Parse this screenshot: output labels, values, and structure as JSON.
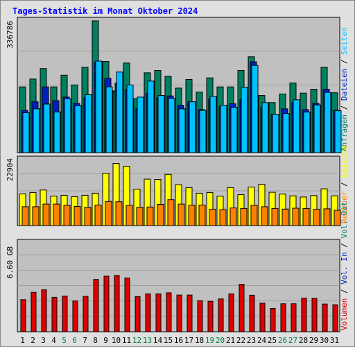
{
  "chart_data": {
    "type": "bar",
    "title": "Tages-Statistik im Monat Oktober 2024",
    "days": [
      "1",
      "2",
      "3",
      "4",
      "5",
      "6",
      "7",
      "8",
      "9",
      "10",
      "11",
      "12",
      "13",
      "14",
      "15",
      "16",
      "17",
      "18",
      "19",
      "20",
      "21",
      "22",
      "23",
      "24",
      "25",
      "26",
      "27",
      "28",
      "29",
      "30",
      "31"
    ],
    "weekend_days": [
      "5",
      "6",
      "12",
      "13",
      "19",
      "20",
      "26",
      "27"
    ],
    "colors": {
      "title": "#0000ff",
      "weekday_tick": "#000000",
      "weekend_tick": "#008040",
      "plot_bg": "#c0c0c0",
      "grid": "#a0a0a0",
      "anfragen": "#008060",
      "dateien": "#0020c0",
      "seiten": "#00c0ff",
      "besuche": "#ffff00",
      "rechner": "#ff8000",
      "volumen": "#e00000"
    },
    "panels": [
      {
        "name": "requests",
        "max_label": "336786",
        "ymax": 336786,
        "series": [
          {
            "key": "anfragen",
            "label": "Anfragen",
            "values": [
              168000,
              188000,
              215000,
              168000,
              198000,
              173000,
              218000,
              336786,
              233000,
              158000,
              229000,
              138000,
              204000,
              210000,
              195000,
              165000,
              187000,
              155000,
              191000,
              168000,
              168000,
              210000,
              245000,
              146000,
              128000,
              150000,
              178000,
              152000,
              162000,
              218000,
              153000
            ]
          },
          {
            "key": "dateien",
            "label": "Dateien",
            "values": [
              108000,
              130000,
              168000,
              133000,
              142000,
              126000,
              140000,
              230000,
              190000,
              178000,
              162000,
              112000,
              152000,
              140000,
              145000,
              121000,
              130000,
              110000,
              138000,
              118000,
              125000,
              135000,
              232000,
              115000,
              98000,
              112000,
              128000,
              110000,
              126000,
              162000,
              108000
            ]
          },
          {
            "key": "seiten",
            "label": "Seiten",
            "values": [
              102000,
              112000,
              124000,
              104000,
              138000,
              120000,
              148000,
              234000,
              168000,
              206000,
              173000,
              142000,
              183000,
              146000,
              139000,
              112000,
              130000,
              108000,
              144000,
              121000,
              116000,
              167000,
              223000,
              128000,
              98000,
              100000,
              135000,
              104000,
              122000,
              154000,
              107000
            ]
          }
        ]
      },
      {
        "name": "visits",
        "max_label": "22904",
        "ymax": 22904,
        "series": [
          {
            "key": "besuche",
            "label": "Besuche",
            "values": [
              10800,
              11200,
              12100,
              10000,
              10300,
              9800,
              10300,
              11000,
              17800,
              21100,
              20200,
              12400,
              15800,
              15700,
              17400,
              13900,
              12900,
              11000,
              11200,
              10000,
              12900,
              10500,
              13100,
              14000,
              11300,
              10700,
              10100,
              9700,
              10200,
              12500,
              10100
            ]
          },
          {
            "key": "rechner",
            "label": "Rechner",
            "values": [
              6400,
              6400,
              7300,
              7300,
              6900,
              6500,
              6200,
              7000,
              8200,
              8100,
              6900,
              6200,
              6300,
              7200,
              8800,
              7300,
              6900,
              7000,
              5500,
              5400,
              6000,
              5800,
              6900,
              6400,
              5800,
              5600,
              5900,
              5800,
              5500,
              5700,
              5200
            ]
          }
        ]
      },
      {
        "name": "volume",
        "max_label": "6.60 GB",
        "ymax": 6.6,
        "series": [
          {
            "key": "volumen",
            "label": "Volumen",
            "values": [
              2.48,
              3.05,
              3.24,
              2.66,
              2.76,
              2.38,
              2.73,
              4.04,
              4.3,
              4.35,
              4.16,
              2.71,
              2.93,
              2.93,
              3.01,
              2.84,
              2.84,
              2.4,
              2.35,
              2.54,
              2.93,
              3.67,
              2.82,
              2.21,
              1.8,
              2.16,
              2.16,
              2.6,
              2.58,
              2.14,
              2.09
            ]
          }
        ]
      }
    ],
    "right_legend_top": [
      {
        "text": "Anfragen",
        "key": "anfragen"
      },
      {
        "text": " / ",
        "key": "sep"
      },
      {
        "text": "Dateien",
        "key": "dateien"
      },
      {
        "text": " / ",
        "key": "sep"
      },
      {
        "text": "Seiten",
        "key": "seiten"
      }
    ],
    "right_legend_middle": [
      {
        "text": "Rechner",
        "key": "rechner"
      },
      {
        "text": " / ",
        "key": "sep"
      },
      {
        "text": "Besuche",
        "key": "besuche"
      }
    ],
    "right_legend_bottom": [
      {
        "text": "Volumen",
        "key": "volumen"
      },
      {
        "text": " / ",
        "key": "sep"
      },
      {
        "text": "Vol. In",
        "key": "dateien"
      },
      {
        "text": " / ",
        "key": "sep"
      },
      {
        "text": "Vol. Out",
        "key": "anfragen"
      }
    ]
  }
}
